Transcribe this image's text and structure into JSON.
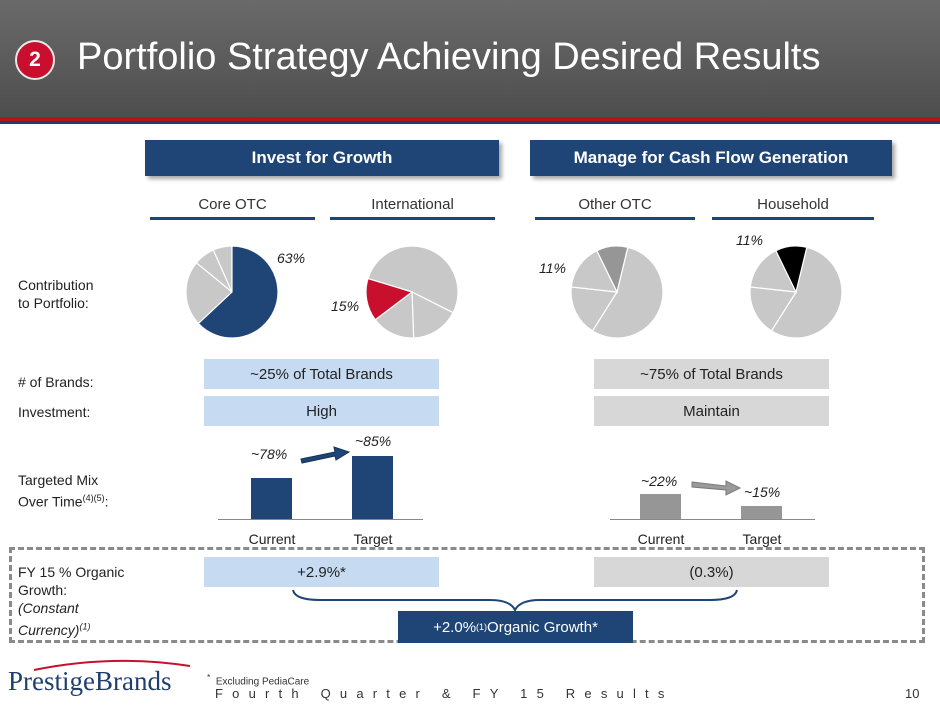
{
  "header": {
    "badge": "2",
    "title": "Portfolio Strategy Achieving Desired Results"
  },
  "banners": {
    "invest": "Invest for Growth",
    "manage": "Manage for Cash Flow Generation"
  },
  "columns": {
    "core_otc": "Core OTC",
    "international": "International",
    "other_otc": "Other OTC",
    "household": "Household"
  },
  "rows": {
    "contribution": "Contribution\nto Portfolio:",
    "brands": "# of Brands:",
    "investment": "Investment:",
    "targeted_mix": "Targeted Mix",
    "over_time": "Over Time",
    "over_time_sup": "(4)(5)",
    "colon": ":",
    "organic_1": "FY 15 % Organic",
    "organic_2": "Growth:",
    "organic_3": "(Constant",
    "organic_4": "Currency)",
    "organic_sup": "(1)"
  },
  "pies": {
    "core_otc": {
      "value": "63%",
      "fraction": 0.63,
      "highlight": "#1f4576",
      "base": "#c8c8c8"
    },
    "international": {
      "value": "15%",
      "fraction": 0.15,
      "highlight": "#c8102e",
      "base": "#c8c8c8"
    },
    "other_otc": {
      "value": "11%",
      "fraction": 0.11,
      "highlight": "#969696",
      "base": "#c8c8c8"
    },
    "household": {
      "value": "11%",
      "fraction": 0.11,
      "highlight": "#000000",
      "base": "#c8c8c8"
    }
  },
  "pills": {
    "invest_brands": "~25% of Total Brands",
    "manage_brands": "~75% of Total Brands",
    "invest_level": "High",
    "manage_level": "Maintain",
    "invest_growth": "+2.9%*",
    "manage_growth": "(0.3%)"
  },
  "mix": {
    "invest": {
      "current_label": "~78%",
      "target_label": "~85%",
      "current": 78,
      "target": 85,
      "color": "#1f4576"
    },
    "manage": {
      "current_label": "~22%",
      "target_label": "~15%",
      "current": 22,
      "target": 15,
      "color": "#969696"
    },
    "x_current": "Current",
    "x_target": "Target"
  },
  "total": {
    "prefix": "+2.0%",
    "sup": "(1)",
    "suffix": " Organic Growth*"
  },
  "footer": {
    "footnote_mark": "*",
    "footnote": "Excluding PediaCare",
    "text": "Fourth Quarter & FY 15 Results",
    "page": "10",
    "logo": "PrestigeBrands"
  },
  "colors": {
    "navy": "#1f4576",
    "red": "#c8102e",
    "light_blue": "#c6dbf2",
    "light_grey": "#d7d7d7"
  }
}
